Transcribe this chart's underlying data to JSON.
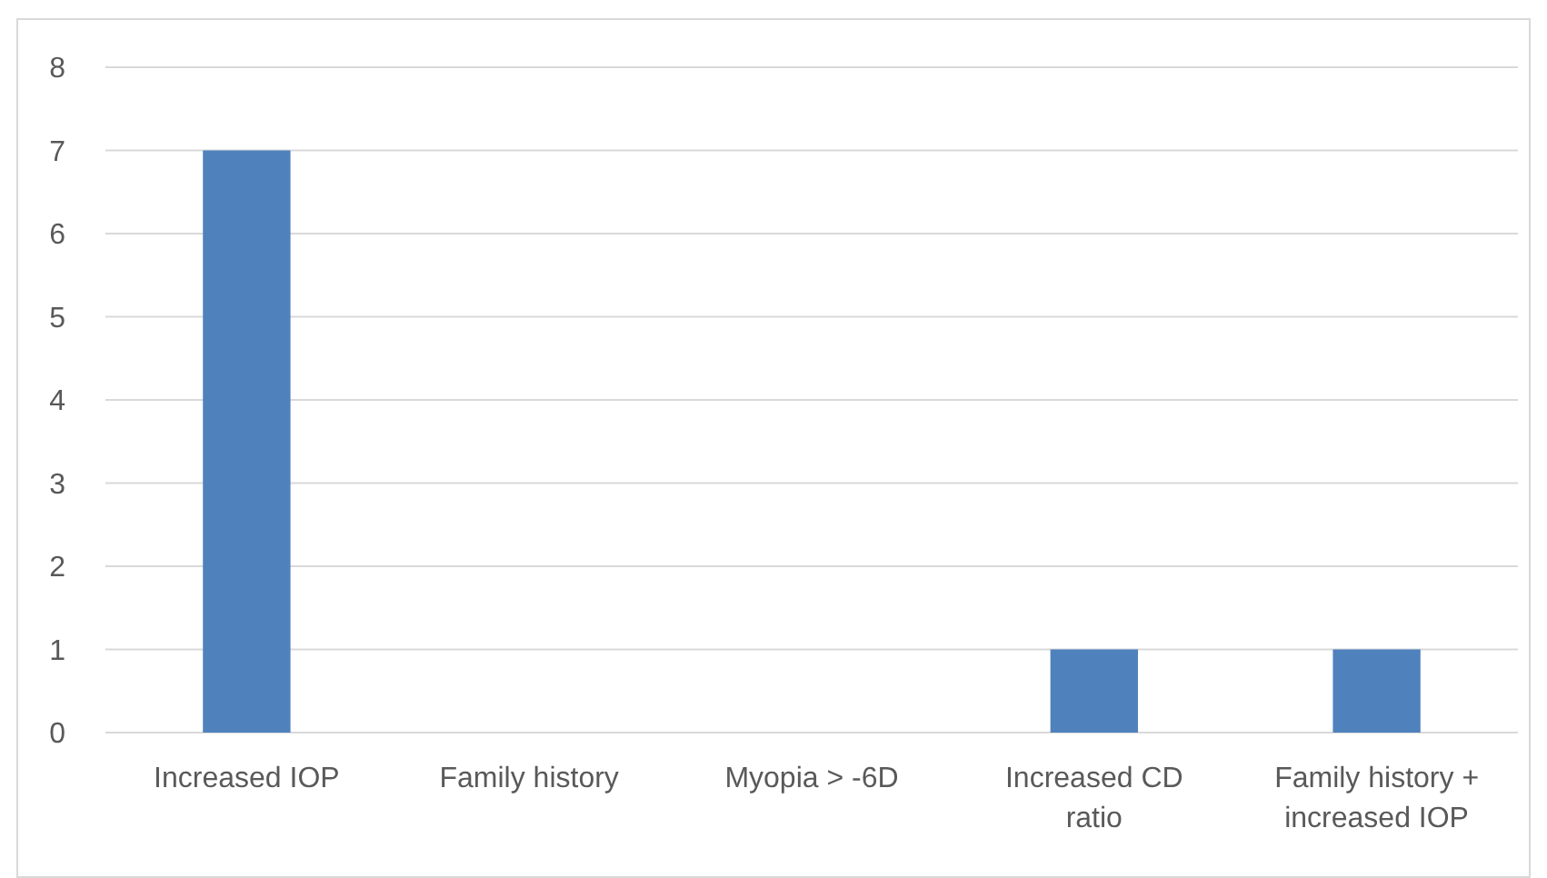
{
  "chart_data": {
    "type": "bar",
    "categories": [
      "Increased IOP",
      "Family history",
      "Myopia > -6D",
      "Increased CD ratio",
      "Family history + increased IOP"
    ],
    "values": [
      7,
      0,
      0,
      1,
      1
    ],
    "color": "#4f81bd",
    "ylim": [
      0,
      8
    ],
    "yticks": [
      0,
      1,
      2,
      3,
      4,
      5,
      6,
      7,
      8
    ],
    "grid": "y"
  }
}
